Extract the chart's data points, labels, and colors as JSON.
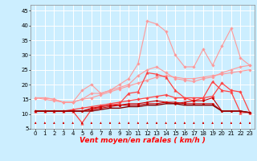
{
  "xlabel": "Vent moyen/en rafales ( km/h )",
  "background_color": "#cceeff",
  "grid_color": "#ffffff",
  "x": [
    0,
    1,
    2,
    3,
    4,
    5,
    6,
    7,
    8,
    9,
    10,
    11,
    12,
    13,
    14,
    15,
    16,
    17,
    18,
    19,
    20,
    21,
    22,
    23
  ],
  "ylim": [
    5,
    47
  ],
  "yticks": [
    5,
    10,
    15,
    20,
    25,
    30,
    35,
    40,
    45
  ],
  "lines": [
    {
      "color": "#ff9999",
      "marker": "D",
      "markersize": 1.8,
      "linewidth": 0.8,
      "y": [
        15.5,
        15.5,
        15.0,
        14.0,
        14.0,
        18.0,
        20.0,
        17.0,
        18.0,
        20.0,
        22.0,
        27.0,
        41.5,
        40.5,
        38.0,
        30.0,
        26.0,
        26.0,
        32.0,
        26.5,
        33.0,
        39.0,
        29.0,
        26.5
      ]
    },
    {
      "color": "#ff9999",
      "marker": "D",
      "markersize": 1.8,
      "linewidth": 0.8,
      "y": [
        15.5,
        15.5,
        15.0,
        14.0,
        14.0,
        15.0,
        17.0,
        17.0,
        18.0,
        19.0,
        20.0,
        23.0,
        25.0,
        26.0,
        24.0,
        22.0,
        21.5,
        21.0,
        22.0,
        22.5,
        24.0,
        25.0,
        26.0,
        26.5
      ]
    },
    {
      "color": "#ff9999",
      "marker": "D",
      "markersize": 1.8,
      "linewidth": 0.8,
      "y": [
        15.5,
        15.0,
        14.5,
        14.0,
        14.0,
        15.0,
        15.5,
        16.5,
        17.5,
        18.5,
        19.5,
        20.5,
        21.5,
        22.5,
        23.0,
        22.5,
        22.0,
        22.0,
        22.5,
        23.0,
        23.5,
        24.0,
        24.5,
        25.0
      ]
    },
    {
      "color": "#ff4444",
      "marker": "^",
      "markersize": 2.5,
      "linewidth": 0.9,
      "y": [
        11.0,
        11.0,
        11.0,
        11.0,
        11.0,
        7.0,
        11.5,
        12.5,
        13.0,
        13.5,
        17.0,
        17.5,
        24.0,
        23.5,
        22.5,
        18.0,
        15.5,
        14.5,
        15.5,
        21.0,
        18.0,
        17.5,
        10.5,
        10.5
      ]
    },
    {
      "color": "#ff4444",
      "marker": "D",
      "markersize": 1.8,
      "linewidth": 0.9,
      "y": [
        11.0,
        11.0,
        11.0,
        11.0,
        11.5,
        12.0,
        12.5,
        13.0,
        13.5,
        14.0,
        14.5,
        15.0,
        15.5,
        16.0,
        16.5,
        15.5,
        15.5,
        15.5,
        15.5,
        16.0,
        20.5,
        18.0,
        17.5,
        10.5
      ]
    },
    {
      "color": "#cc0000",
      "marker": "D",
      "markersize": 1.5,
      "linewidth": 0.8,
      "y": [
        11.0,
        11.0,
        11.0,
        11.0,
        11.0,
        11.0,
        12.0,
        12.5,
        13.0,
        13.0,
        13.5,
        13.5,
        14.0,
        14.5,
        14.0,
        13.5,
        14.0,
        14.5,
        14.5,
        15.5,
        11.0,
        11.0,
        11.0,
        10.5
      ]
    },
    {
      "color": "#cc0000",
      "marker": "D",
      "markersize": 1.5,
      "linewidth": 0.8,
      "y": [
        11.0,
        11.0,
        11.0,
        11.0,
        11.0,
        11.0,
        11.5,
        12.0,
        12.5,
        13.0,
        13.0,
        13.0,
        13.5,
        13.5,
        14.0,
        14.0,
        13.5,
        13.5,
        13.5,
        13.5,
        11.0,
        11.0,
        11.0,
        10.5
      ]
    },
    {
      "color": "#880000",
      "marker": null,
      "markersize": 0,
      "linewidth": 1.0,
      "y": [
        11.0,
        11.0,
        11.0,
        11.0,
        11.0,
        11.0,
        11.0,
        11.5,
        12.0,
        12.0,
        12.5,
        12.5,
        13.0,
        13.0,
        13.5,
        13.5,
        13.0,
        13.0,
        13.0,
        13.0,
        11.0,
        11.0,
        11.0,
        10.5
      ]
    }
  ],
  "xlabel_fontsize": 6.5,
  "tick_fontsize": 5.0,
  "arrow_color": "#cc0000",
  "arrow_size": 4.0
}
